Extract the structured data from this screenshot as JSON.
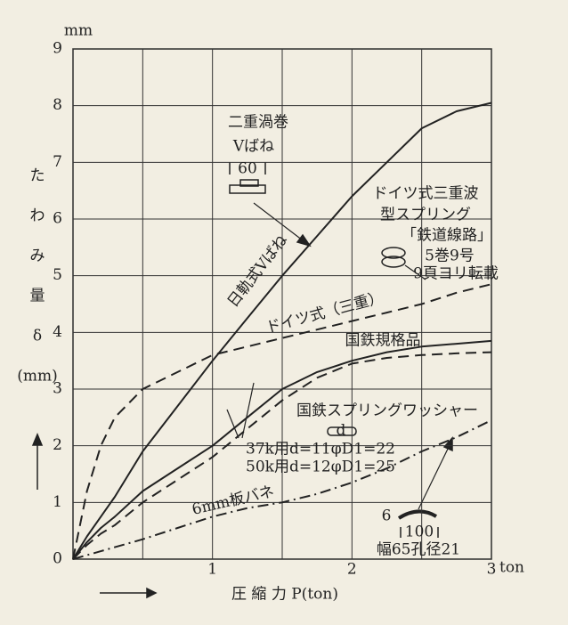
{
  "chart_data": {
    "type": "line",
    "y_unit": "mm",
    "x_unit": "ton",
    "ylabel_lines": [
      "た",
      "わ",
      "み",
      "量",
      "δ",
      "(mm)"
    ],
    "xlabel": "圧 縮 力 P(ton)",
    "x": [
      0,
      0.1,
      0.2,
      0.3,
      0.5,
      0.75,
      1,
      1.25,
      1.5,
      1.75,
      2,
      2.25,
      2.5,
      2.75,
      3
    ],
    "xlim": [
      0,
      3
    ],
    "xticks": [
      0,
      1,
      2,
      3
    ],
    "ylim": [
      0,
      9
    ],
    "yticks": [
      0,
      1,
      2,
      3,
      4,
      5,
      6,
      7,
      8,
      9
    ],
    "grid": true,
    "series": [
      {
        "name": "日軌式Vばね",
        "color": "#222222",
        "style": "solid",
        "values": [
          0,
          0.4,
          0.75,
          1.1,
          1.9,
          2.7,
          3.5,
          4.25,
          5.0,
          5.7,
          6.4,
          7.0,
          7.6,
          7.9,
          8.05
        ]
      },
      {
        "name": "ドイツ式（三重）",
        "color": "#222222",
        "style": "dashed",
        "values": [
          0,
          1.2,
          2.0,
          2.5,
          3.0,
          3.3,
          3.6,
          3.75,
          3.9,
          4.05,
          4.2,
          4.35,
          4.5,
          4.7,
          4.85
        ]
      },
      {
        "name": "国鉄規格品",
        "color": "#222222",
        "style": "solid",
        "values": [
          0,
          0.3,
          0.55,
          0.75,
          1.2,
          1.6,
          2.0,
          2.5,
          3.0,
          3.3,
          3.5,
          3.65,
          3.75,
          3.8,
          3.85
        ]
      },
      {
        "name": "国鉄スプリングワッシャー",
        "color": "#222222",
        "style": "dashed",
        "values": [
          0,
          0.25,
          0.45,
          0.6,
          1.0,
          1.4,
          1.8,
          2.3,
          2.8,
          3.2,
          3.45,
          3.55,
          3.6,
          3.63,
          3.65
        ]
      },
      {
        "name": "6mm板バネ",
        "color": "#222222",
        "style": "dashdot",
        "values": [
          0,
          0.07,
          0.14,
          0.21,
          0.35,
          0.55,
          0.75,
          0.9,
          1.0,
          1.15,
          1.35,
          1.6,
          1.9,
          2.15,
          2.45
        ]
      }
    ],
    "annotations": [
      "二重渦巻",
      "Vばね",
      "60",
      "ドイツ式三重波",
      "型スプリング",
      "「鉄道線路」",
      "5巻9号",
      "9頁ヨリ転載",
      "d",
      "37k用d=11φD1=22",
      "50k用d=12φD1=25",
      "6",
      "100",
      "幅65孔径21"
    ]
  }
}
